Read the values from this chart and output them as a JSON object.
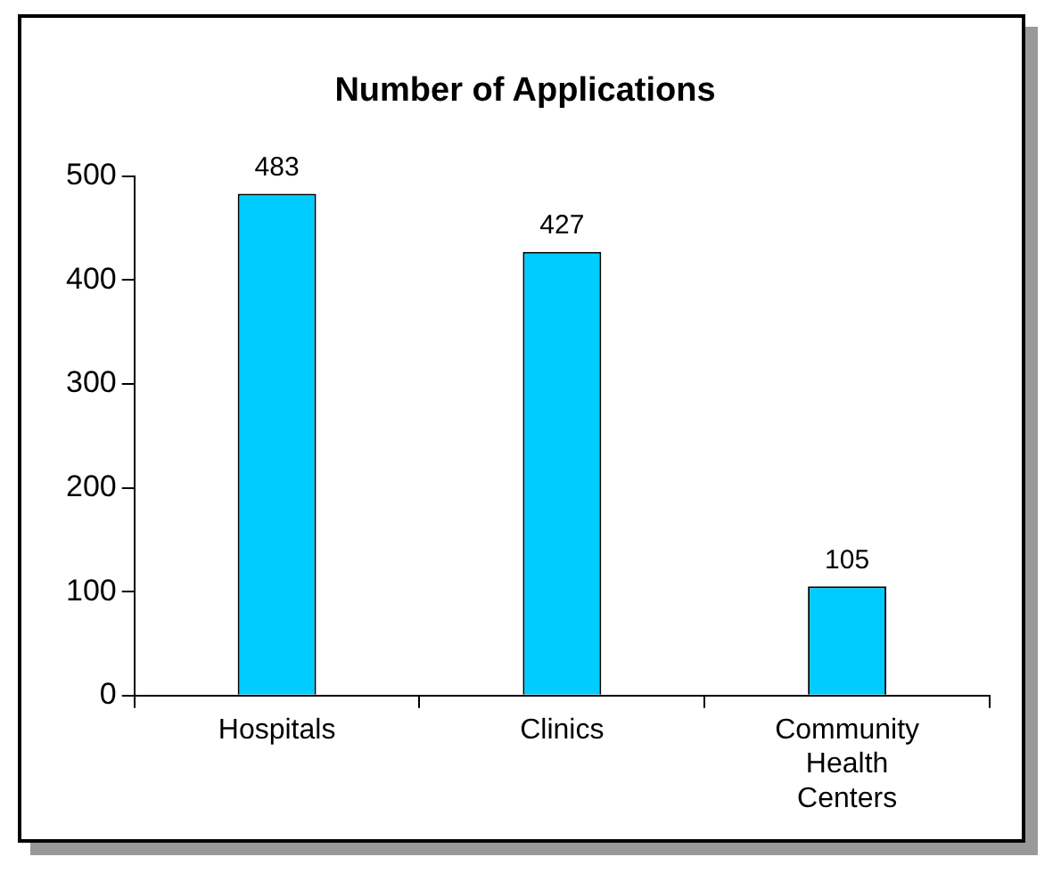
{
  "chart_data": {
    "type": "bar",
    "title": "Number of Applications",
    "categories": [
      "Hospitals",
      "Clinics",
      "Community Health Centers"
    ],
    "values": [
      483,
      427,
      105
    ],
    "color": "#00ccff",
    "ylim": [
      0,
      500
    ],
    "yticks": [
      0,
      100,
      200,
      300,
      400,
      500
    ],
    "data_labels": true,
    "legend": false
  }
}
